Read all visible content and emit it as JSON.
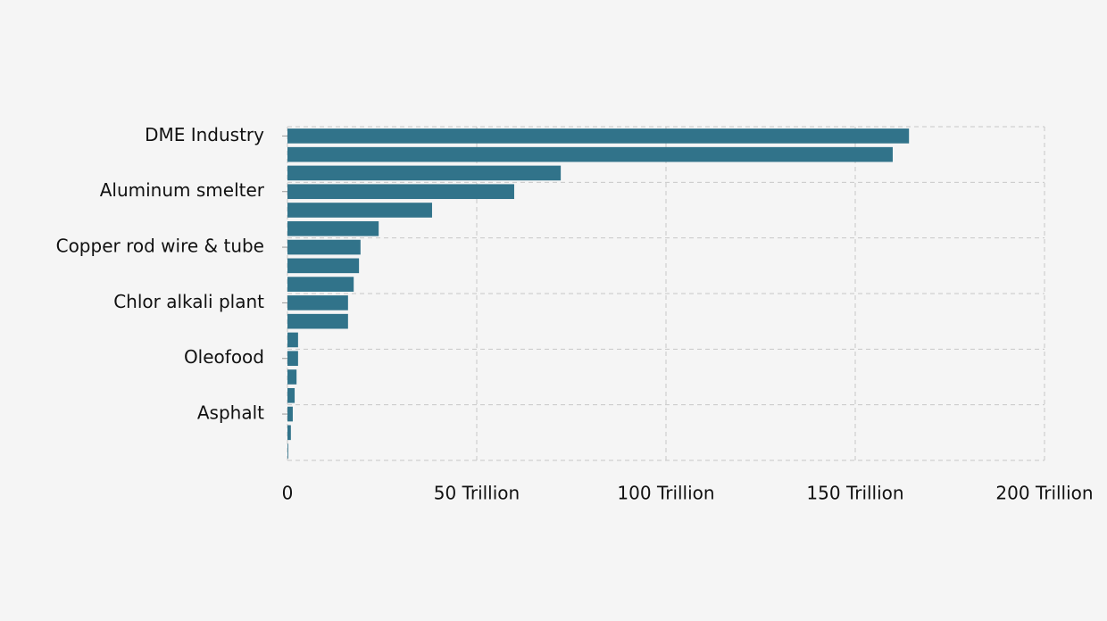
{
  "chart_data": {
    "type": "hbar",
    "categories": [
      "DME Industry",
      null,
      null,
      "Aluminum smelter",
      null,
      null,
      "Copper rod wire & tube",
      null,
      null,
      "Chlor alkali plant",
      null,
      null,
      "Oleofood",
      null,
      null,
      "Asphalt",
      null,
      null
    ],
    "values": [
      164200000000000,
      159900000000000,
      72200000000000,
      59900000000000,
      38200000000000,
      24100000000000,
      19300000000000,
      18900000000000,
      17500000000000,
      16000000000000,
      16000000000000,
      2800000000000,
      2800000000000,
      2400000000000,
      1900000000000,
      1400000000000,
      900000000000,
      200000000000
    ],
    "color": "#31738a",
    "xlim": [
      0,
      200000000000000
    ],
    "xticks": [
      0,
      {
        "value": 50000000000000,
        "label": "50 Trillion"
      },
      {
        "value": 100000000000000,
        "label": "100 Trillion"
      },
      {
        "value": 150000000000000,
        "label": "150 Trillion"
      },
      {
        "value": 200000000000000,
        "label": "200 Trillion"
      }
    ],
    "grid": true
  }
}
